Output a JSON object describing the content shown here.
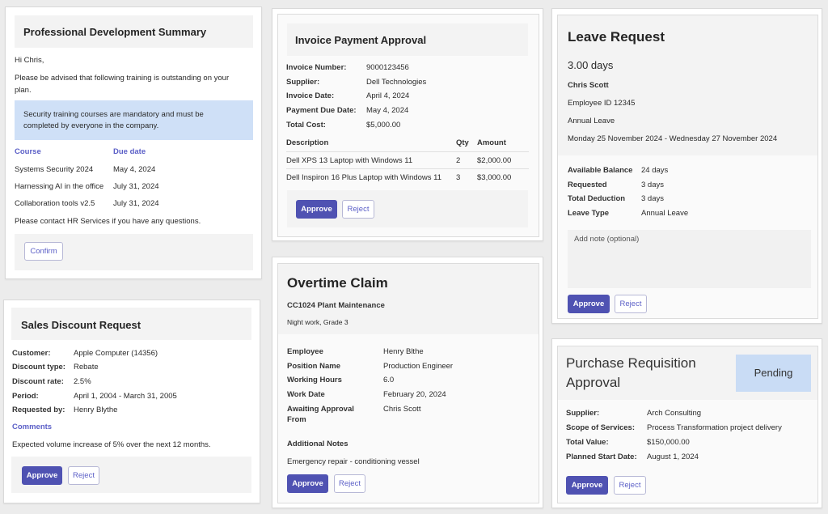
{
  "pd": {
    "title": "Professional Development Summary",
    "greeting": "Hi Chris,",
    "intro_1": "Please be advised that following training is outstanding on your",
    "intro_2": "plan.",
    "alert_1": "Security training courses are mandatory and must be",
    "alert_2": "completed by everyone in the company.",
    "col_course": "Course",
    "col_due": "Due date",
    "rows": [
      {
        "course": "Systems Security 2024",
        "due": "May 4, 2024"
      },
      {
        "course": "Harnessing AI in the office",
        "due": "July 31, 2024"
      },
      {
        "course": "Collaboration tools v2.5",
        "due": "July 31, 2024"
      }
    ],
    "contact": "Please contact HR Services if you have any questions.",
    "confirm": "Confirm"
  },
  "sales": {
    "title": "Sales Discount Request",
    "fields": [
      {
        "label": "Customer:",
        "value": "Apple Computer (14356)"
      },
      {
        "label": "Discount type:",
        "value": "Rebate"
      },
      {
        "label": "Discount rate:",
        "value": "2.5%"
      },
      {
        "label": "Period:",
        "value": "April 1, 2004 - March 31, 2005"
      },
      {
        "label": "Requested by:",
        "value": "Henry Blythe"
      }
    ],
    "comments_label": "Comments",
    "comments": "Expected volume increase of 5% over the next 12 months.",
    "approve": "Approve",
    "reject": "Reject"
  },
  "invoice": {
    "title": "Invoice Payment Approval",
    "fields": [
      {
        "label": "Invoice Number:",
        "value": "9000123456"
      },
      {
        "label": "Supplier:",
        "value": "Dell Technologies"
      },
      {
        "label": "Invoice Date:",
        "value": "April 4, 2024"
      },
      {
        "label": "Payment Due Date:",
        "value": "May 4, 2024"
      },
      {
        "label": "Total Cost:",
        "value": "$5,000.00"
      }
    ],
    "col_description": "Description",
    "col_qty": "Qty",
    "col_amount": "Amount",
    "lines": [
      {
        "description": "Dell XPS 13 Laptop with Windows 11",
        "qty": "2",
        "amount": "$2,000.00"
      },
      {
        "description": "Dell Inspiron 16 Plus Laptop with Windows 11",
        "qty": "3",
        "amount": "$3,000.00"
      }
    ],
    "approve": "Approve",
    "reject": "Reject"
  },
  "overtime": {
    "title": "Overtime Claim",
    "subtitle": "CC1024 Plant Maintenance",
    "desc": "Night work, Grade 3",
    "fields": [
      {
        "label": "Employee",
        "value": "Henry Blthe"
      },
      {
        "label": "Position Name",
        "value": "Production Engineer"
      },
      {
        "label": "Working Hours",
        "value": "6.0"
      },
      {
        "label": "Work Date",
        "value": "February 20, 2024"
      }
    ],
    "awaiting_label_1": "Awaiting Approval",
    "awaiting_label_2": "From",
    "awaiting_value": "Chris Scott",
    "notes_label": "Additional Notes",
    "notes": "Emergency repair - conditioning vessel",
    "approve": "Approve",
    "reject": "Reject"
  },
  "leave": {
    "title": "Leave Request",
    "days": "3.00 days",
    "name": "Chris Scott",
    "employee_id": "Employee ID 12345",
    "type": "Annual Leave",
    "range": "Monday 25 November 2024 - Wednesday 27 November 2024",
    "fields": [
      {
        "label": "Available Balance",
        "value": "24 days"
      },
      {
        "label": "Requested",
        "value": "3 days"
      },
      {
        "label": "Total Deduction",
        "value": "3 days"
      },
      {
        "label": "Leave Type",
        "value": "Annual Leave"
      }
    ],
    "note_placeholder": "Add note (optional)",
    "approve": "Approve",
    "reject": "Reject"
  },
  "purchase": {
    "title_1": "Purchase Requisition",
    "title_2": "Approval",
    "status": "Pending",
    "fields": [
      {
        "label": "Supplier:",
        "value": "Arch Consulting"
      },
      {
        "label": "Scope of Services:",
        "value": "Process Transformation project delivery"
      },
      {
        "label": "Total Value:",
        "value": "$150,000.00"
      },
      {
        "label": "Planned Start Date:",
        "value": "August 1, 2024"
      }
    ],
    "approve": "Approve",
    "reject": "Reject"
  },
  "colors": {
    "accent": "#4f52b2",
    "link": "#5b5fc7",
    "alert_bg": "#cfe0f7",
    "pending_bg": "#c9dcf5"
  }
}
